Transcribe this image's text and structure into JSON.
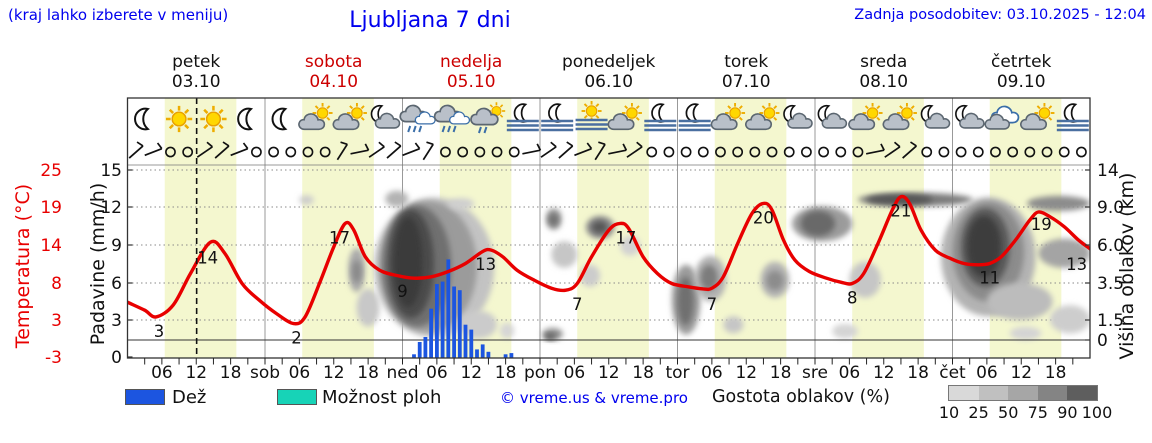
{
  "header": {
    "hint": "(kraj lahko izberete v meniju)",
    "title": "Ljubljana 7 dni",
    "updated": "Zadnja posodobitev: 03.10.2025 - 12:04"
  },
  "days": [
    {
      "label": "petek",
      "date": "03.10",
      "red": false
    },
    {
      "label": "sobota",
      "date": "04.10",
      "red": true
    },
    {
      "label": "nedelja",
      "date": "05.10",
      "red": true
    },
    {
      "label": "ponedeljek",
      "date": "06.10",
      "red": false
    },
    {
      "label": "torek",
      "date": "07.10",
      "red": false
    },
    {
      "label": "sreda",
      "date": "08.10",
      "red": false
    },
    {
      "label": "četrtek",
      "date": "09.10",
      "red": false
    }
  ],
  "axes": {
    "temp_label": "Temperatura (°C)",
    "temp_ticks": [
      "25",
      "19",
      "14",
      "8",
      "3",
      "-3"
    ],
    "precip_label": "Padavine (mm/h)",
    "precip_ticks": [
      "15",
      "12",
      "9",
      "6",
      "3",
      "0"
    ],
    "cloud_label": "Višina oblakov (km)",
    "cloud_ticks": [
      "14",
      "9.0",
      "6.0",
      "3.5",
      "1.5",
      "0"
    ],
    "time_ticks": [
      "06",
      "12",
      "18",
      "sob",
      "06",
      "12",
      "18",
      "ned",
      "06",
      "12",
      "18",
      "pon",
      "06",
      "12",
      "18",
      "tor",
      "06",
      "12",
      "18",
      "sre",
      "06",
      "12",
      "18",
      "čet",
      "06",
      "12",
      "18"
    ]
  },
  "legend": {
    "rain_label": "Dež",
    "showers_label": "Možnost ploh",
    "credit": "© vreme.us & vreme.pro",
    "density_label": "Gostota oblakov (%)",
    "density_ticks": [
      "10",
      "25",
      "50",
      "75",
      "90",
      "100"
    ]
  },
  "colors": {
    "blue_text": "#0000ee",
    "red": "#e80000",
    "day_red": "#cc0000",
    "day_band": "#f4f7cf",
    "rain_bar": "#1c55e0",
    "showers": "#17d3b7",
    "grid": "#999999",
    "density_scale": [
      "#d9d9d9",
      "#c0c0c0",
      "#a6a6a6",
      "#848484",
      "#5e5e5e"
    ]
  },
  "chart_data": {
    "type": "meteogram (temperature line + precipitation bars + cloud-density contours)",
    "x_hours_range": [
      0,
      168
    ],
    "now_hour": 12.07,
    "daylight_hours": [
      6.5,
      19
    ],
    "ylim_precip_mm_h": [
      0,
      15
    ],
    "ylim_temp_c": [
      -3,
      25
    ],
    "cloud_height_km_ticks": [
      0,
      1.5,
      3.5,
      6.0,
      9.0,
      14
    ],
    "temperature_series": [
      [
        0,
        5.2
      ],
      [
        3,
        4
      ],
      [
        5,
        3
      ],
      [
        8,
        4.8
      ],
      [
        11,
        9.5
      ],
      [
        14.5,
        14.2
      ],
      [
        17,
        12.5
      ],
      [
        20,
        8
      ],
      [
        23,
        5.5
      ],
      [
        26,
        3.5
      ],
      [
        29,
        2
      ],
      [
        31,
        3
      ],
      [
        33.5,
        8
      ],
      [
        36,
        13.5
      ],
      [
        38,
        17
      ],
      [
        39.5,
        16
      ],
      [
        41.5,
        12
      ],
      [
        44,
        10
      ],
      [
        47,
        9.2
      ],
      [
        50,
        8.8
      ],
      [
        53,
        9
      ],
      [
        56,
        9.8
      ],
      [
        59,
        11
      ],
      [
        62,
        12.8
      ],
      [
        63.5,
        13
      ],
      [
        65.5,
        12
      ],
      [
        68,
        10
      ],
      [
        71,
        8.5
      ],
      [
        74,
        7.3
      ],
      [
        76.5,
        7
      ],
      [
        78.5,
        8
      ],
      [
        81,
        12
      ],
      [
        84,
        16
      ],
      [
        86,
        17
      ],
      [
        87.5,
        16.2
      ],
      [
        90,
        12
      ],
      [
        92.5,
        9.5
      ],
      [
        95,
        8
      ],
      [
        98,
        7.5
      ],
      [
        100.5,
        7.2
      ],
      [
        102,
        7.3
      ],
      [
        104,
        9
      ],
      [
        106.5,
        14
      ],
      [
        109,
        18.5
      ],
      [
        111,
        20
      ],
      [
        112.5,
        19
      ],
      [
        114.5,
        14.5
      ],
      [
        116.5,
        11.5
      ],
      [
        119,
        9.8
      ],
      [
        122,
        8.8
      ],
      [
        124.5,
        8.2
      ],
      [
        126.5,
        8
      ],
      [
        128.5,
        9.5
      ],
      [
        131,
        14
      ],
      [
        133.5,
        19
      ],
      [
        135,
        21
      ],
      [
        136.5,
        20
      ],
      [
        138.5,
        16
      ],
      [
        141,
        13
      ],
      [
        143.5,
        11.8
      ],
      [
        146,
        11
      ],
      [
        148.5,
        10.8
      ],
      [
        150.5,
        11
      ],
      [
        152.5,
        12
      ],
      [
        155,
        14.5
      ],
      [
        157.5,
        17.5
      ],
      [
        159,
        18.7
      ],
      [
        161,
        18
      ],
      [
        163.5,
        16.5
      ],
      [
        166,
        14.5
      ],
      [
        168,
        13.2
      ]
    ],
    "temp_point_labels": [
      [
        5.5,
        3,
        "3"
      ],
      [
        14,
        14,
        "14"
      ],
      [
        29.5,
        2,
        "2"
      ],
      [
        37,
        17,
        "17"
      ],
      [
        48,
        9,
        "9"
      ],
      [
        62.5,
        13,
        "13"
      ],
      [
        78.5,
        7,
        "7"
      ],
      [
        87,
        17,
        "17"
      ],
      [
        102,
        7,
        "7"
      ],
      [
        111,
        20,
        "20"
      ],
      [
        126.5,
        8,
        "8"
      ],
      [
        135,
        21,
        "21"
      ],
      [
        150.5,
        11,
        "11"
      ],
      [
        159.5,
        19,
        "19"
      ],
      [
        167.5,
        13,
        "13"
      ]
    ],
    "rain_mm_h": [
      [
        50,
        0.3
      ],
      [
        51,
        1.3
      ],
      [
        52,
        1.7
      ],
      [
        53,
        4
      ],
      [
        54,
        6
      ],
      [
        55,
        6.2
      ],
      [
        56,
        8
      ],
      [
        57,
        5.8
      ],
      [
        58,
        5.5
      ],
      [
        59,
        2.7
      ],
      [
        60,
        2.3
      ],
      [
        61,
        0.7
      ],
      [
        62,
        1.1
      ],
      [
        63,
        0.5
      ],
      [
        66,
        0.3
      ],
      [
        67,
        0.4
      ]
    ],
    "weather_icons": [
      "moon",
      "sun",
      "sun",
      "moon",
      "moon",
      "sun-cloud",
      "sun-cloud",
      "moon-cloud",
      "rain",
      "rain",
      "sun-rain",
      "moon-fog",
      "moon-fog",
      "sun-fog",
      "sun-cloud",
      "moon-fog",
      "moon-fog",
      "sun-cloud",
      "sun-cloud",
      "moon-cloud",
      "moon-cloud",
      "sun-cloud",
      "sun-cloud",
      "moon-cloud",
      "moon-cloud",
      "cloud",
      "sun-cloud",
      "moon-fog"
    ],
    "wind_symbols": [
      "barb",
      "barb",
      "calm",
      "calm",
      "barb",
      "barb",
      "barb",
      "calm",
      "calm",
      "calm",
      "calm",
      "calm",
      "barb",
      "barb",
      "barb",
      "barb",
      "barb",
      "barb",
      "calm",
      "calm",
      "calm",
      "calm",
      "calm",
      "barb",
      "barb",
      "barb",
      "barb",
      "barb",
      "barb",
      "barb",
      "calm",
      "calm",
      "calm",
      "calm",
      "calm",
      "calm",
      "calm",
      "calm",
      "calm",
      "calm",
      "calm",
      "calm",
      "calm",
      "barb",
      "barb",
      "barb",
      "calm",
      "calm",
      "calm",
      "calm",
      "calm",
      "calm",
      "calm",
      "calm",
      "calm",
      "calm"
    ],
    "clouds_h0_h1_kmBot_kmTop_shade": [
      [
        30,
        32.5,
        9.3,
        10.6,
        "#cccccc"
      ],
      [
        38.5,
        41.5,
        3.0,
        5.8,
        "#aaaaaa"
      ],
      [
        39.2,
        40.8,
        3.5,
        5.0,
        "#888888"
      ],
      [
        40,
        44,
        1.0,
        3.2,
        "#c8c8c8"
      ],
      [
        43,
        64,
        0.2,
        10.3,
        "#c3c3c3"
      ],
      [
        44,
        61,
        0.6,
        9.8,
        "#9b9b9b"
      ],
      [
        44.5,
        56.5,
        1.0,
        9.2,
        "#6f6f6f"
      ],
      [
        45.5,
        53.5,
        1.6,
        8.8,
        "#4b4b4b"
      ],
      [
        46.5,
        51.5,
        2.2,
        8.2,
        "#3a3a3a"
      ],
      [
        45,
        49,
        9.0,
        11.2,
        "#b3b3b3"
      ],
      [
        56,
        60.5,
        8.8,
        10.2,
        "#cfcfcf"
      ],
      [
        58,
        64.5,
        0.1,
        2.0,
        "#cbcbcb"
      ],
      [
        65,
        67.5,
        0.1,
        1.3,
        "#d6d6d6"
      ],
      [
        72.4,
        76,
        0,
        0.9,
        "#909090"
      ],
      [
        72.7,
        74.8,
        0,
        0.5,
        "#5f5f5f"
      ],
      [
        73,
        75.8,
        7.2,
        8.9,
        "#9b9b9b"
      ],
      [
        73.5,
        75.2,
        7.5,
        8.5,
        "#6f6f6f"
      ],
      [
        74,
        78.5,
        4.5,
        6.3,
        "#c6c6c6"
      ],
      [
        80,
        85,
        6.5,
        8.3,
        "#8c8c8c"
      ],
      [
        81,
        83.8,
        6.9,
        7.9,
        "#575757"
      ],
      [
        79,
        82.5,
        3.3,
        4.7,
        "#cccccc"
      ],
      [
        86,
        89.5,
        5.3,
        6.7,
        "#d2d2d2"
      ],
      [
        95,
        100,
        0.4,
        4.7,
        "#9b9b9b"
      ],
      [
        96,
        98.8,
        1.1,
        3.9,
        "#6f6f6f"
      ],
      [
        99,
        104.5,
        2.5,
        5.3,
        "#b2b2b2"
      ],
      [
        100,
        103,
        3.1,
        4.7,
        "#7b7b7b"
      ],
      [
        104,
        107.5,
        0.5,
        1.7,
        "#c6c6c6"
      ],
      [
        110.5,
        115.5,
        2.7,
        4.9,
        "#b2b2b2"
      ],
      [
        111.5,
        114.5,
        3.1,
        4.3,
        "#8c8c8c"
      ],
      [
        116,
        126.5,
        6.3,
        9.1,
        "#9b9b9b"
      ],
      [
        117.5,
        123.5,
        6.7,
        8.7,
        "#696969"
      ],
      [
        123,
        127.5,
        0.1,
        1.2,
        "#d4d4d4"
      ],
      [
        126,
        131.5,
        2.7,
        4.9,
        "#c6c6c6"
      ],
      [
        127.5,
        147.5,
        9.1,
        10.9,
        "#7b7b7b"
      ],
      [
        129,
        140.5,
        9.3,
        10.7,
        "#545454"
      ],
      [
        142,
        158.5,
        1.7,
        10.3,
        "#b3b3b3"
      ],
      [
        144,
        156.5,
        2.5,
        9.7,
        "#8c8c8c"
      ],
      [
        145.5,
        154,
        3.3,
        8.9,
        "#5a5a5a"
      ],
      [
        146.5,
        152.5,
        3.9,
        8.3,
        "#3e3e3e"
      ],
      [
        150,
        161.5,
        1.5,
        3.5,
        "#bcbcbc"
      ],
      [
        154,
        159.5,
        0,
        1.0,
        "#d4d4d4"
      ],
      [
        157,
        168,
        8.7,
        10.5,
        "#8c8c8c"
      ],
      [
        159,
        168,
        4.5,
        6.5,
        "#a4a4a4"
      ],
      [
        161,
        168,
        0.5,
        2.3,
        "#cdcdcd"
      ]
    ]
  }
}
